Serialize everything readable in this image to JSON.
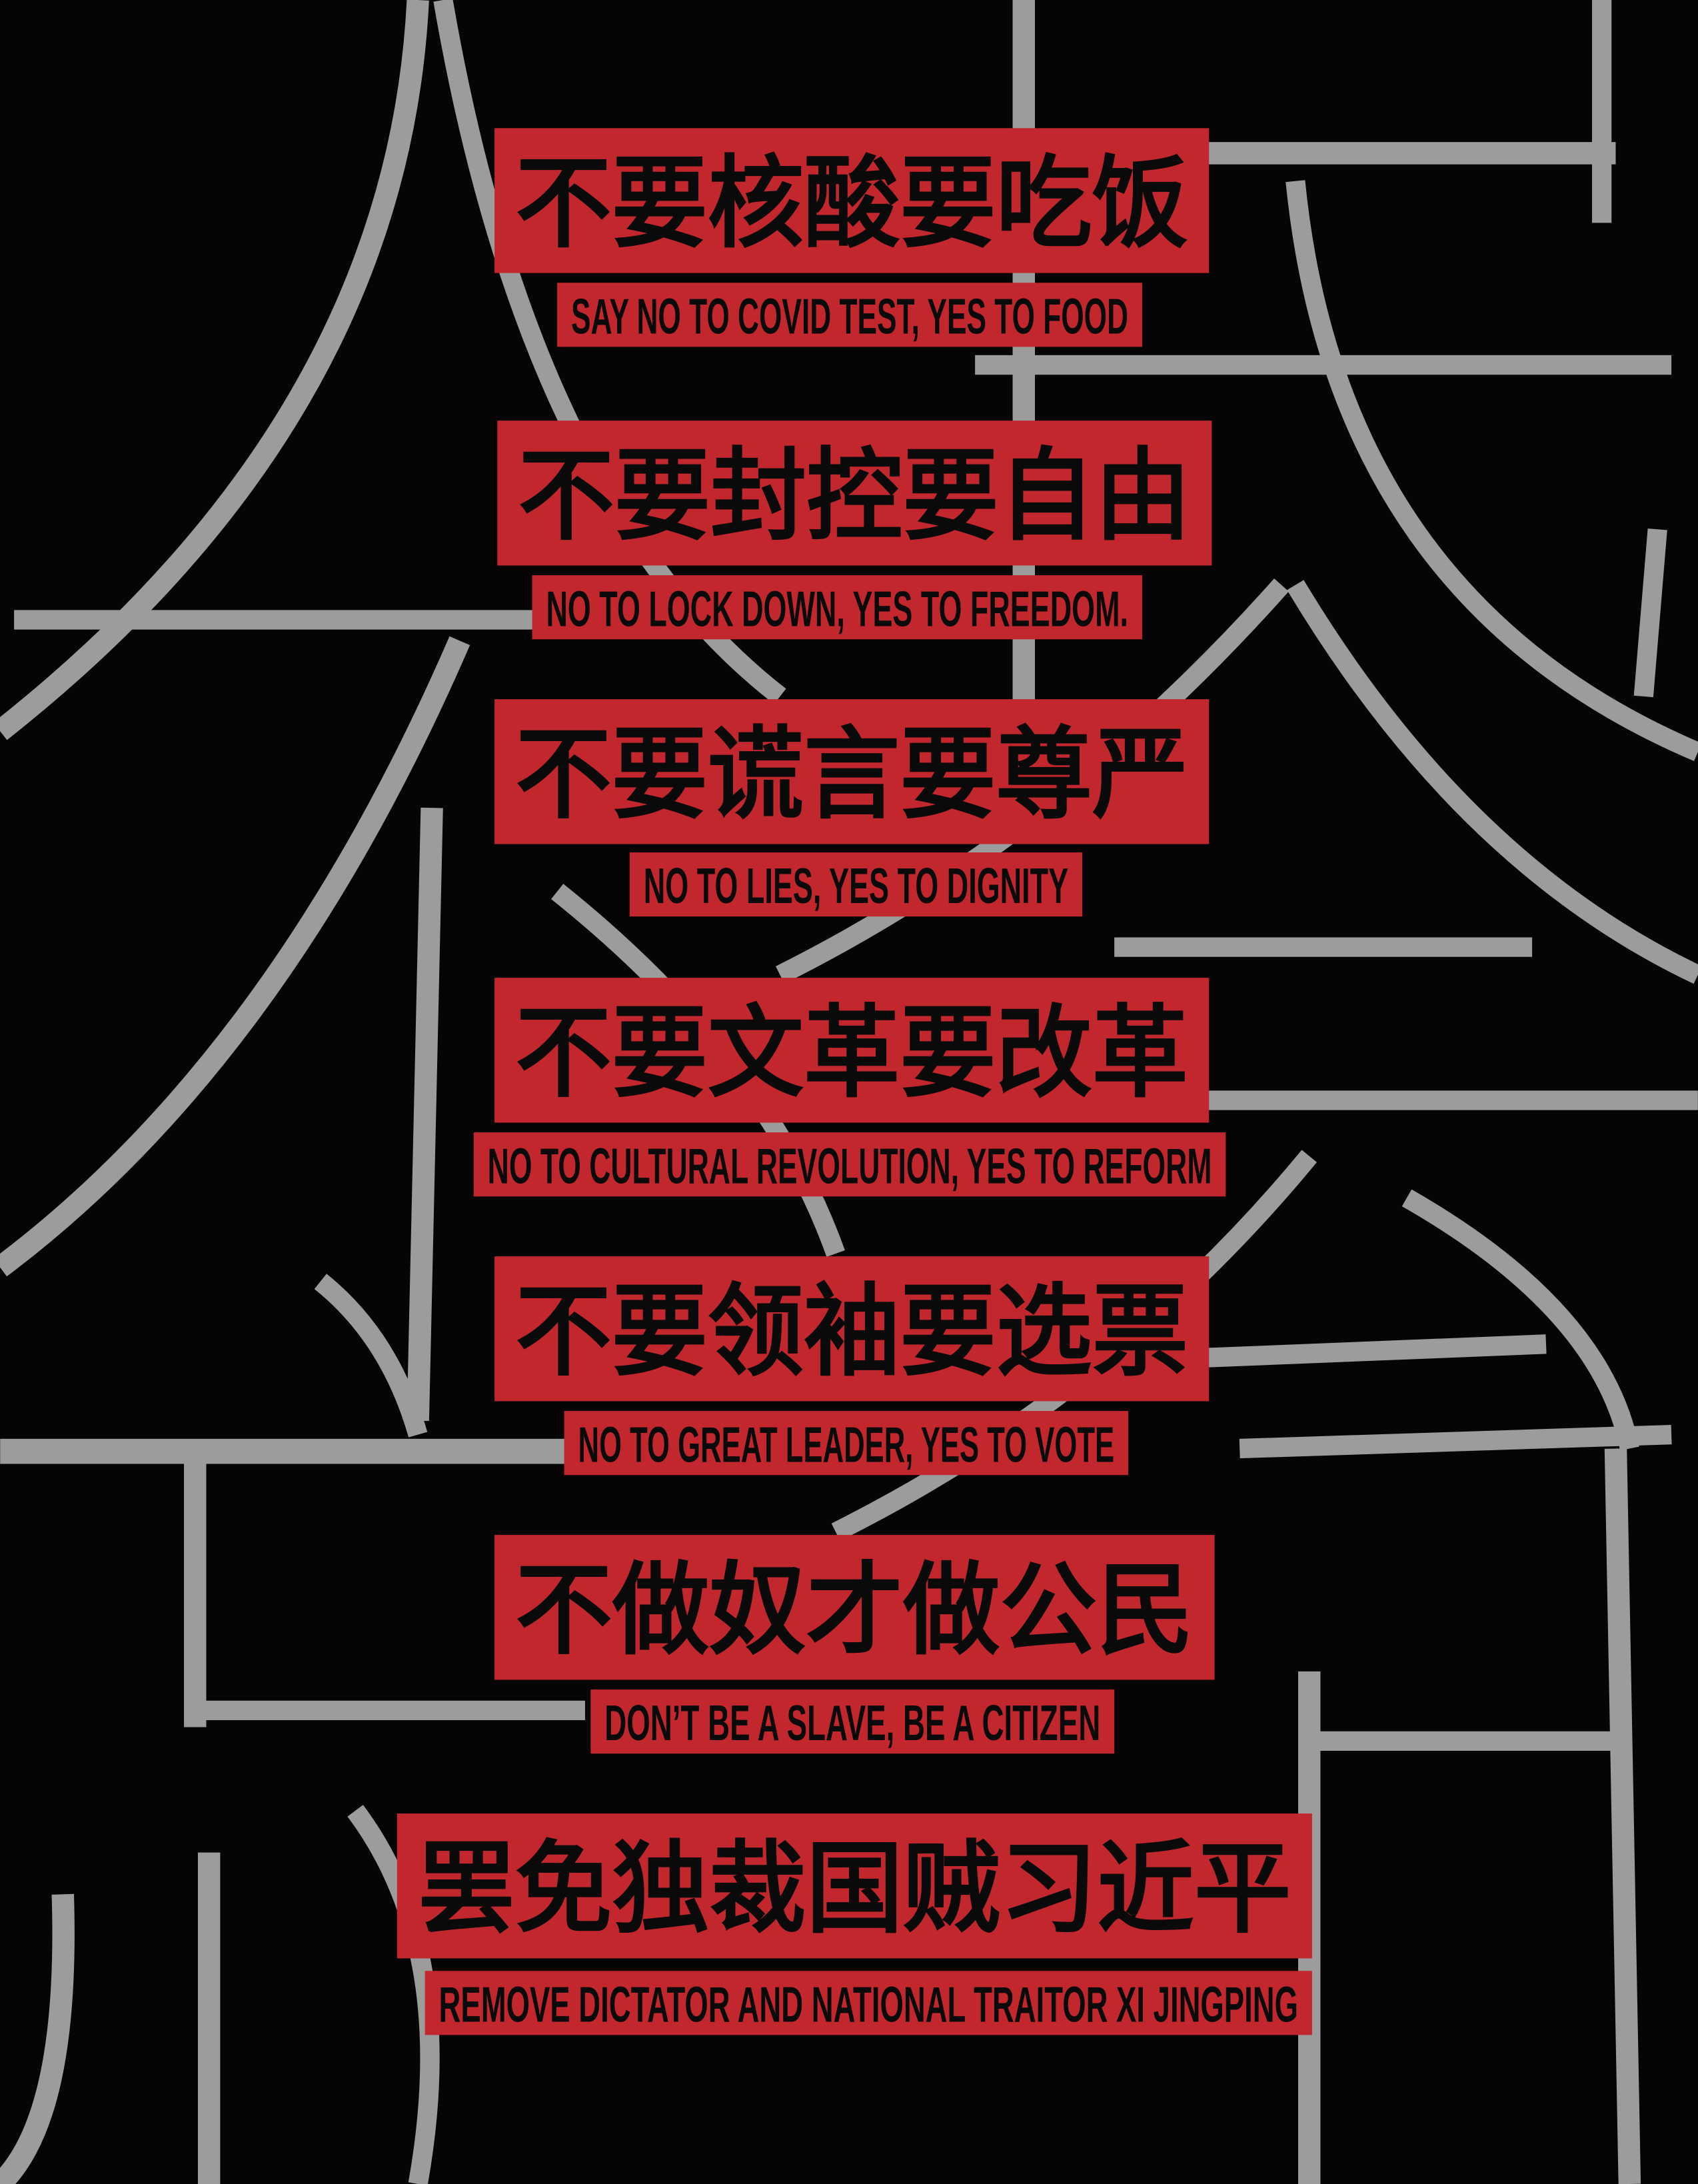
{
  "slogans": [
    {
      "chinese": "不要核酸要吃饭",
      "english": "SAY NO TO COVID TEST, YES TO FOOD"
    },
    {
      "chinese": "不要封控要自由",
      "english": "NO TO LOCK DOWN, YES TO FREEDOM."
    },
    {
      "chinese": "不要谎言要尊严",
      "english": "NO TO LIES, YES TO DIGNITY"
    },
    {
      "chinese": "不要文革要改革",
      "english": "NO TO CULTURAL REVOLUTION, YES TO REFORM"
    },
    {
      "chinese": "不要领袖要选票",
      "english": "NO TO GREAT LEADER, YES TO VOTE"
    },
    {
      "chinese": "不做奴才做公民",
      "english": "DON’T BE A SLAVE, BE A CITIZEN"
    },
    {
      "chinese": "罢免独裁国贼习近平",
      "english": "REMOVE DICTATOR AND NATIONAL TRAITOR XI JINGPING"
    }
  ]
}
